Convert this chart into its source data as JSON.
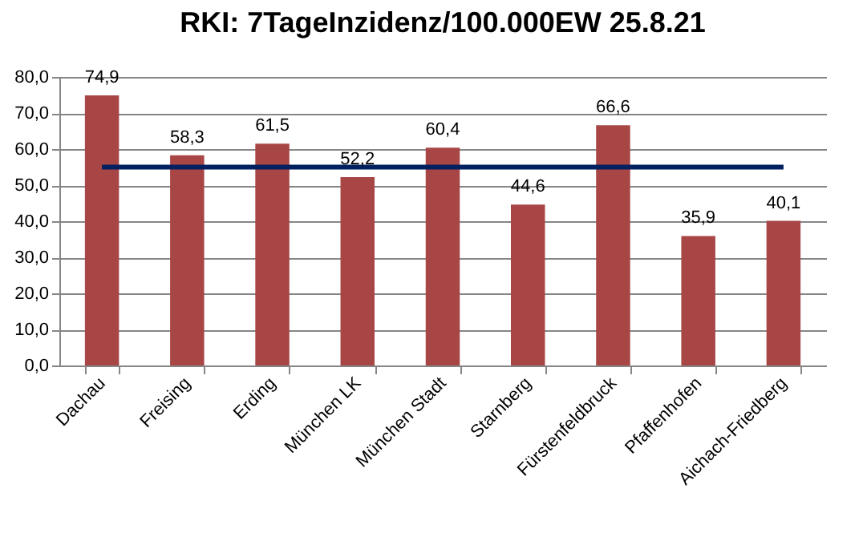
{
  "chart_data": {
    "type": "bar",
    "title": "RKI: 7TageInzidenz/100.000EW 25.8.21",
    "categories": [
      "Dachau",
      "Freising",
      "Erding",
      "München LK",
      "München Stadt",
      "Starnberg",
      "Fürstenfeldbruck",
      "Pfaffenhofen",
      "Aichach-Friedberg"
    ],
    "values": [
      74.9,
      58.3,
      61.5,
      52.2,
      60.4,
      44.6,
      66.6,
      35.9,
      40.1
    ],
    "value_labels": [
      "74,9",
      "58,3",
      "61,5",
      "52,2",
      "60,4",
      "44,6",
      "66,6",
      "35,9",
      "40,1"
    ],
    "color": "#a84646",
    "ylim": [
      0,
      80
    ],
    "yticks": [
      {
        "value": 0,
        "label": "0,0"
      },
      {
        "value": 10,
        "label": "10,0"
      },
      {
        "value": 20,
        "label": "20,0"
      },
      {
        "value": 30,
        "label": "30,0"
      },
      {
        "value": 40,
        "label": "40,0"
      },
      {
        "value": 50,
        "label": "50,0"
      },
      {
        "value": 60,
        "label": "60,0"
      },
      {
        "value": 70,
        "label": "70,0"
      },
      {
        "value": 80,
        "label": "80,0"
      }
    ],
    "ref_lines": [
      {
        "axis": "y",
        "value": 55,
        "color": "#002060"
      }
    ],
    "grid": "y"
  }
}
